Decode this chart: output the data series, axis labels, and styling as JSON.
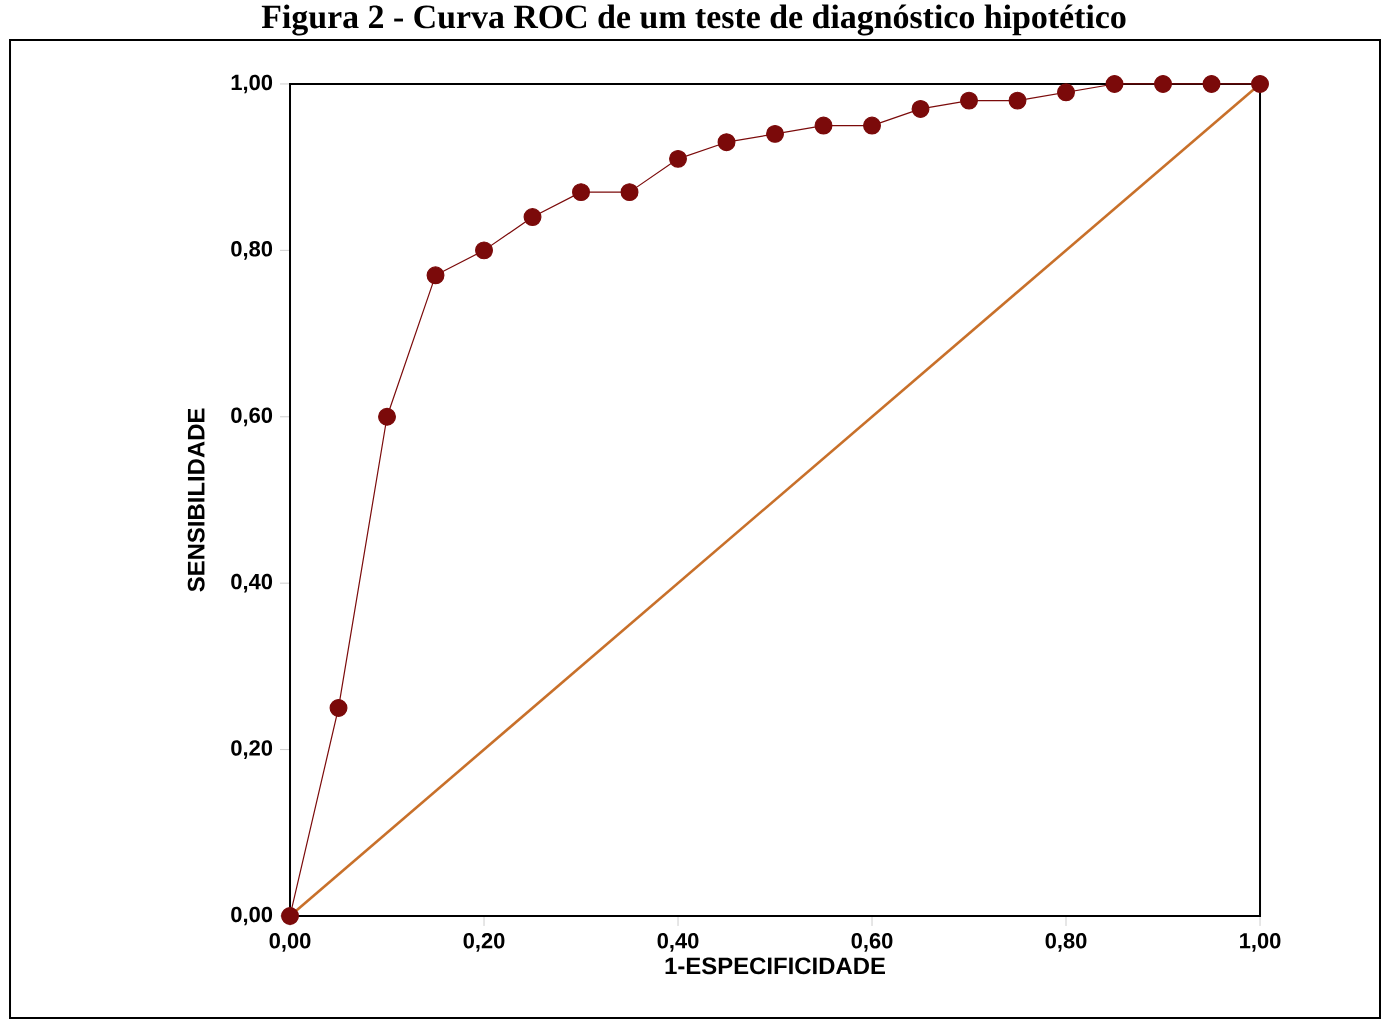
{
  "chart_data": {
    "type": "line",
    "title": "Figura 2 - Curva ROC de um teste de diagnóstico hipotético",
    "xlabel": "1-ESPECIFICIDADE",
    "ylabel": "SENSIBILIDADE",
    "series": [
      {
        "color": "#7b0a0a",
        "marker": "circle",
        "x": [
          0,
          0.05,
          0.1,
          0.15,
          0.2,
          0.25,
          0.3,
          0.35,
          0.4,
          0.45,
          0.5,
          0.55,
          0.6,
          0.65,
          0.7,
          0.75,
          0.8,
          0.85,
          0.9,
          0.95,
          1.0
        ],
        "values": [
          0,
          0.25,
          0.6,
          0.77,
          0.8,
          0.84,
          0.87,
          0.87,
          0.91,
          0.93,
          0.94,
          0.95,
          0.95,
          0.97,
          0.98,
          0.98,
          0.99,
          1.0,
          1.0,
          1.0,
          1.0
        ]
      },
      {
        "color": "#c8702a",
        "marker": "none",
        "x": [
          0,
          1.0
        ],
        "values": [
          0,
          1.0
        ]
      }
    ],
    "xlim": [
      0,
      1.0
    ],
    "ylim": [
      0,
      1.0
    ],
    "xticks": [
      {
        "value": 0,
        "label": "0,00"
      },
      {
        "value": 0.2,
        "label": "0,20"
      },
      {
        "value": 0.4,
        "label": "0,40"
      },
      {
        "value": 0.6,
        "label": "0,60"
      },
      {
        "value": 0.8,
        "label": "0,80"
      },
      {
        "value": 1.0,
        "label": "1,00"
      }
    ],
    "yticks": [
      {
        "value": 0,
        "label": "0,00"
      },
      {
        "value": 0.2,
        "label": "0,20"
      },
      {
        "value": 0.4,
        "label": "0,40"
      },
      {
        "value": 0.6,
        "label": "0,60"
      },
      {
        "value": 0.8,
        "label": "0,80"
      },
      {
        "value": 1.0,
        "label": "1,00"
      }
    ],
    "grid": false
  }
}
